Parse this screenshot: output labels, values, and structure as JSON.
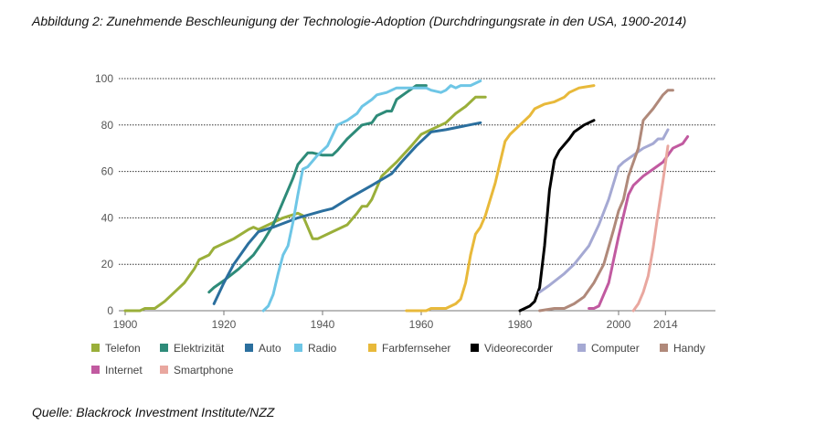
{
  "chart_data": {
    "type": "line",
    "title": "Abbildung 2: Zunehmende Beschleunigung der Technologie-Adoption (Durchdringungsrate in den USA, 1900-2014)",
    "source": "Quelle: Blackrock Investment Institute/NZZ",
    "xlabel": "",
    "ylabel": "",
    "xlim": [
      1900,
      2020
    ],
    "ylim": [
      0,
      100
    ],
    "grid": "horizontal dotted",
    "legend_placement": "bottom",
    "y_ticks": [
      0,
      20,
      40,
      60,
      80,
      100
    ],
    "x_ticks": [
      {
        "label": "1900",
        "value": 1900
      },
      {
        "label": "1920",
        "value": 1920
      },
      {
        "label": "1940",
        "value": 1940
      },
      {
        "label": "1960",
        "value": 1960
      },
      {
        "label": "1980",
        "value": 1980
      },
      {
        "label": "2000",
        "value": 2000
      },
      {
        "label": "2014",
        "value": 2009.5
      }
    ],
    "series": [
      {
        "name": "Telefon",
        "color": "#9aaf3a",
        "points": [
          [
            1900,
            0
          ],
          [
            1903,
            0
          ],
          [
            1904,
            1
          ],
          [
            1906,
            1
          ],
          [
            1908,
            4
          ],
          [
            1910,
            8
          ],
          [
            1912,
            12
          ],
          [
            1914,
            18
          ],
          [
            1915,
            22
          ],
          [
            1917,
            24
          ],
          [
            1918,
            27
          ],
          [
            1920,
            29
          ],
          [
            1922,
            31
          ],
          [
            1925,
            35
          ],
          [
            1926,
            36
          ],
          [
            1927,
            35
          ],
          [
            1930,
            38
          ],
          [
            1932,
            40
          ],
          [
            1935,
            42
          ],
          [
            1936,
            41
          ],
          [
            1937,
            36
          ],
          [
            1938,
            31
          ],
          [
            1939,
            31
          ],
          [
            1942,
            34
          ],
          [
            1945,
            37
          ],
          [
            1947,
            42
          ],
          [
            1948,
            45
          ],
          [
            1949,
            45
          ],
          [
            1950,
            48
          ],
          [
            1951,
            53
          ],
          [
            1952,
            58
          ],
          [
            1955,
            64
          ],
          [
            1958,
            71
          ],
          [
            1960,
            76
          ],
          [
            1962,
            78
          ],
          [
            1965,
            81
          ],
          [
            1967,
            85
          ],
          [
            1969,
            88
          ],
          [
            1971,
            92
          ],
          [
            1973,
            92
          ]
        ]
      },
      {
        "name": "Elektrizität",
        "color": "#2e8b79",
        "points": [
          [
            1917,
            8
          ],
          [
            1918,
            10
          ],
          [
            1920,
            13
          ],
          [
            1923,
            18
          ],
          [
            1925,
            22
          ],
          [
            1926,
            24
          ],
          [
            1928,
            30
          ],
          [
            1930,
            37
          ],
          [
            1932,
            47
          ],
          [
            1934,
            57
          ],
          [
            1935,
            63
          ],
          [
            1937,
            68
          ],
          [
            1938,
            68
          ],
          [
            1940,
            67
          ],
          [
            1942,
            67
          ],
          [
            1943,
            69
          ],
          [
            1945,
            74
          ],
          [
            1947,
            78
          ],
          [
            1948,
            80
          ],
          [
            1950,
            81
          ],
          [
            1951,
            84
          ],
          [
            1953,
            86
          ],
          [
            1954,
            86
          ],
          [
            1955,
            91
          ],
          [
            1957,
            94
          ],
          [
            1959,
            97
          ],
          [
            1961,
            97
          ]
        ]
      },
      {
        "name": "Auto",
        "color": "#2b6f9e",
        "points": [
          [
            1918,
            3
          ],
          [
            1920,
            12
          ],
          [
            1922,
            20
          ],
          [
            1925,
            29
          ],
          [
            1927,
            34
          ],
          [
            1930,
            36
          ],
          [
            1935,
            40
          ],
          [
            1940,
            43
          ],
          [
            1942,
            44
          ],
          [
            1945,
            48
          ],
          [
            1950,
            54
          ],
          [
            1954,
            59
          ],
          [
            1956,
            64
          ],
          [
            1959,
            71
          ],
          [
            1962,
            77
          ],
          [
            1965,
            78
          ],
          [
            1972,
            81
          ]
        ]
      },
      {
        "name": "Radio",
        "color": "#6ec6e6",
        "points": [
          [
            1928,
            0
          ],
          [
            1929,
            2
          ],
          [
            1930,
            7
          ],
          [
            1931,
            16
          ],
          [
            1932,
            24
          ],
          [
            1933,
            28
          ],
          [
            1934,
            38
          ],
          [
            1935,
            50
          ],
          [
            1936,
            61
          ],
          [
            1937,
            62
          ],
          [
            1939,
            67
          ],
          [
            1941,
            71
          ],
          [
            1943,
            80
          ],
          [
            1945,
            82
          ],
          [
            1947,
            85
          ],
          [
            1948,
            88
          ],
          [
            1950,
            91
          ],
          [
            1951,
            93
          ],
          [
            1953,
            94
          ],
          [
            1955,
            96
          ],
          [
            1958,
            96
          ],
          [
            1961,
            96
          ],
          [
            1962,
            95
          ],
          [
            1964,
            94
          ],
          [
            1965,
            95
          ],
          [
            1966,
            97
          ],
          [
            1967,
            96
          ],
          [
            1968,
            97
          ],
          [
            1970,
            97
          ],
          [
            1972,
            99
          ]
        ]
      },
      {
        "name": "Farbfernseher",
        "color": "#e8b93a",
        "points": [
          [
            1957,
            0
          ],
          [
            1961,
            0
          ],
          [
            1962,
            1
          ],
          [
            1965,
            1
          ],
          [
            1967,
            3
          ],
          [
            1968,
            5
          ],
          [
            1969,
            12
          ],
          [
            1970,
            24
          ],
          [
            1971,
            33
          ],
          [
            1972,
            36
          ],
          [
            1973,
            41
          ],
          [
            1974,
            48
          ],
          [
            1975,
            55
          ],
          [
            1976,
            64
          ],
          [
            1977,
            73
          ],
          [
            1978,
            76
          ],
          [
            1979,
            78
          ],
          [
            1980,
            80
          ],
          [
            1982,
            84
          ],
          [
            1983,
            87
          ],
          [
            1985,
            89
          ],
          [
            1987,
            90
          ],
          [
            1989,
            92
          ],
          [
            1990,
            94
          ],
          [
            1992,
            96
          ],
          [
            1995,
            97
          ]
        ]
      },
      {
        "name": "Videorecorder",
        "color": "#000000",
        "points": [
          [
            1980,
            0
          ],
          [
            1982,
            2
          ],
          [
            1983,
            4
          ],
          [
            1984,
            10
          ],
          [
            1985,
            28
          ],
          [
            1986,
            52
          ],
          [
            1987,
            65
          ],
          [
            1988,
            69
          ],
          [
            1990,
            74
          ],
          [
            1991,
            77
          ],
          [
            1993,
            80
          ],
          [
            1995,
            82
          ]
        ]
      },
      {
        "name": "Computer",
        "color": "#a5a9d3",
        "points": [
          [
            1984,
            8
          ],
          [
            1986,
            11
          ],
          [
            1989,
            16
          ],
          [
            1991,
            20
          ],
          [
            1994,
            28
          ],
          [
            1996,
            37
          ],
          [
            1998,
            48
          ],
          [
            2000,
            62
          ],
          [
            2001,
            64
          ],
          [
            2003,
            67
          ],
          [
            2005,
            70
          ],
          [
            2007,
            72
          ],
          [
            2008,
            74
          ],
          [
            2009,
            74
          ],
          [
            2010,
            78
          ]
        ]
      },
      {
        "name": "Handy",
        "color": "#b0897a",
        "points": [
          [
            1984,
            0
          ],
          [
            1987,
            1
          ],
          [
            1989,
            1
          ],
          [
            1991,
            3
          ],
          [
            1993,
            6
          ],
          [
            1995,
            12
          ],
          [
            1997,
            20
          ],
          [
            1999,
            35
          ],
          [
            2000,
            43
          ],
          [
            2001,
            48
          ],
          [
            2002,
            58
          ],
          [
            2004,
            70
          ],
          [
            2005,
            82
          ],
          [
            2007,
            87
          ],
          [
            2009,
            93
          ],
          [
            2010,
            95
          ],
          [
            2011,
            95
          ]
        ]
      },
      {
        "name": "Internet",
        "color": "#c15aa0",
        "points": [
          [
            1994,
            1
          ],
          [
            1995,
            1
          ],
          [
            1996,
            2
          ],
          [
            1998,
            12
          ],
          [
            1999,
            22
          ],
          [
            2000,
            32
          ],
          [
            2002,
            50
          ],
          [
            2003,
            54
          ],
          [
            2005,
            58
          ],
          [
            2007,
            61
          ],
          [
            2009,
            64
          ],
          [
            2010,
            67
          ],
          [
            2011,
            70
          ],
          [
            2013,
            72
          ],
          [
            2014,
            75
          ]
        ]
      },
      {
        "name": "Smartphone",
        "color": "#e9a79f",
        "points": [
          [
            2003,
            0
          ],
          [
            2004,
            3
          ],
          [
            2005,
            8
          ],
          [
            2006,
            15
          ],
          [
            2007,
            27
          ],
          [
            2008,
            42
          ],
          [
            2009,
            56
          ],
          [
            2010,
            71
          ]
        ]
      }
    ]
  }
}
